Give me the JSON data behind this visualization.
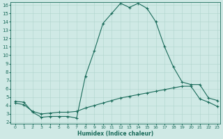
{
  "xlabel": "Humidex (Indice chaleur)",
  "bg_color": "#cfe9e5",
  "line_color": "#1a6b5a",
  "grid_color": "#b0d4cc",
  "curve1_x": [
    0,
    1,
    2,
    3,
    4,
    5,
    6,
    7,
    8,
    9,
    10,
    11,
    12,
    13,
    14,
    15,
    16,
    17,
    18,
    19,
    20,
    21,
    22,
    23
  ],
  "curve1_y": [
    4.5,
    4.4,
    3.2,
    2.6,
    2.7,
    2.7,
    2.7,
    2.5,
    7.5,
    10.5,
    13.8,
    15.0,
    16.2,
    15.7,
    16.2,
    15.6,
    14.0,
    11.0,
    8.6,
    6.8,
    6.5,
    6.5,
    4.9,
    4.6
  ],
  "curve2_x": [
    0,
    1,
    2,
    3,
    4,
    5,
    6,
    7,
    8,
    9,
    10,
    11,
    12,
    13,
    14,
    15,
    16,
    17,
    18,
    19,
    20,
    21,
    22,
    23
  ],
  "curve2_y": [
    4.3,
    4.1,
    3.3,
    3.0,
    3.1,
    3.2,
    3.2,
    3.3,
    3.7,
    4.0,
    4.3,
    4.6,
    4.9,
    5.1,
    5.3,
    5.5,
    5.7,
    5.9,
    6.1,
    6.3,
    6.3,
    4.8,
    4.4,
    3.9
  ],
  "xlim": [
    -0.5,
    23.3
  ],
  "ylim": [
    1.8,
    16.3
  ],
  "yticks": [
    2,
    3,
    4,
    5,
    6,
    7,
    8,
    9,
    10,
    11,
    12,
    13,
    14,
    15,
    16
  ],
  "xticks": [
    0,
    1,
    2,
    3,
    4,
    5,
    6,
    7,
    8,
    9,
    10,
    11,
    12,
    13,
    14,
    15,
    16,
    17,
    18,
    19,
    20,
    21,
    22,
    23
  ]
}
